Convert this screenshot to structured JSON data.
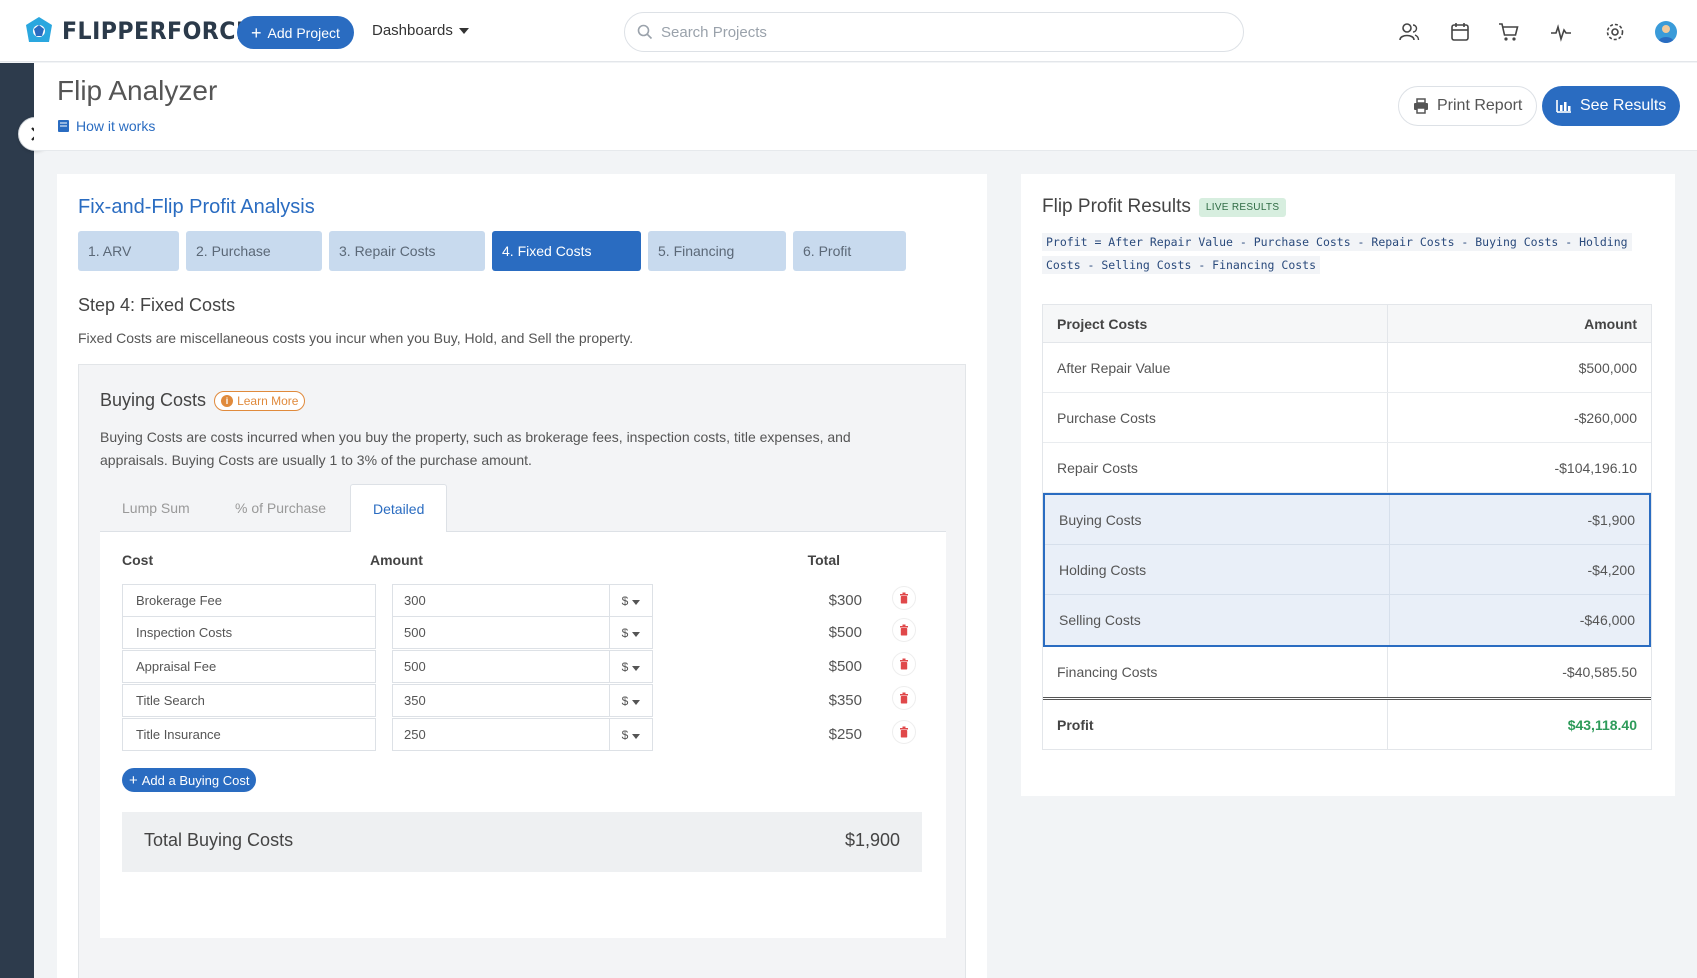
{
  "nav": {
    "brand": "FLIPPERFORCE",
    "add_project": "Add Project",
    "dashboards": "Dashboards",
    "search_placeholder": "Search Projects"
  },
  "header": {
    "title": "Flip Analyzer",
    "how_it_works": "How it works",
    "print_report": "Print Report",
    "see_results": "See Results"
  },
  "analysis": {
    "title": "Fix-and-Flip Profit Analysis",
    "steps": [
      "1. ARV",
      "2. Purchase",
      "3. Repair Costs",
      "4. Fixed Costs",
      "5. Financing",
      "6. Profit"
    ],
    "active_step": 3,
    "step_heading": "Step 4: Fixed Costs",
    "step_desc": "Fixed Costs are miscellaneous costs you incur when you Buy, Hold, and Sell the property."
  },
  "buying": {
    "title": "Buying Costs",
    "learn_more": "Learn More",
    "desc": "Buying Costs are costs incurred when you buy the property, such as brokerage fees, inspection costs, title expenses, and appraisals. Buying Costs are usually 1 to 3% of the purchase amount.",
    "tabs": [
      "Lump Sum",
      "% of Purchase",
      "Detailed"
    ],
    "active_tab": 2,
    "col_cost": "Cost",
    "col_amount": "Amount",
    "col_total": "Total",
    "rows": [
      {
        "name": "Brokerage Fee",
        "amount": "300",
        "unit": "$",
        "total": "$300"
      },
      {
        "name": "Inspection Costs",
        "amount": "500",
        "unit": "$",
        "total": "$500"
      },
      {
        "name": "Appraisal Fee",
        "amount": "500",
        "unit": "$",
        "total": "$500"
      },
      {
        "name": "Title Search",
        "amount": "350",
        "unit": "$",
        "total": "$350"
      },
      {
        "name": "Title Insurance",
        "amount": "250",
        "unit": "$",
        "total": "$250"
      }
    ],
    "add_cost": "Add a Buying Cost",
    "total_label": "Total Buying Costs",
    "total_value": "$1,900"
  },
  "results": {
    "title": "Flip Profit Results",
    "badge": "LIVE RESULTS",
    "formula_line1": "Profit = After Repair Value - Purchase Costs - Repair Costs - Buying Costs - Holding",
    "formula_line2": "Costs - Selling Costs - Financing Costs",
    "head_left": "Project Costs",
    "head_right": "Amount",
    "rows_top": [
      {
        "label": "After Repair Value",
        "value": "$500,000"
      },
      {
        "label": "Purchase Costs",
        "value": "-$260,000"
      },
      {
        "label": "Repair Costs",
        "value": "-$104,196.10"
      }
    ],
    "rows_highlight": [
      {
        "label": "Buying Costs",
        "value": "-$1,900"
      },
      {
        "label": "Holding Costs",
        "value": "-$4,200"
      },
      {
        "label": "Selling Costs",
        "value": "-$46,000"
      }
    ],
    "row_financing": {
      "label": "Financing Costs",
      "value": "-$40,585.50"
    },
    "profit": {
      "label": "Profit",
      "value": "$43,118.40"
    }
  },
  "colors": {
    "primary": "#2a6cc1",
    "rail": "#2d3b4c",
    "profit_green": "#2e9b5a",
    "learn_more_orange": "#e08a3c"
  }
}
